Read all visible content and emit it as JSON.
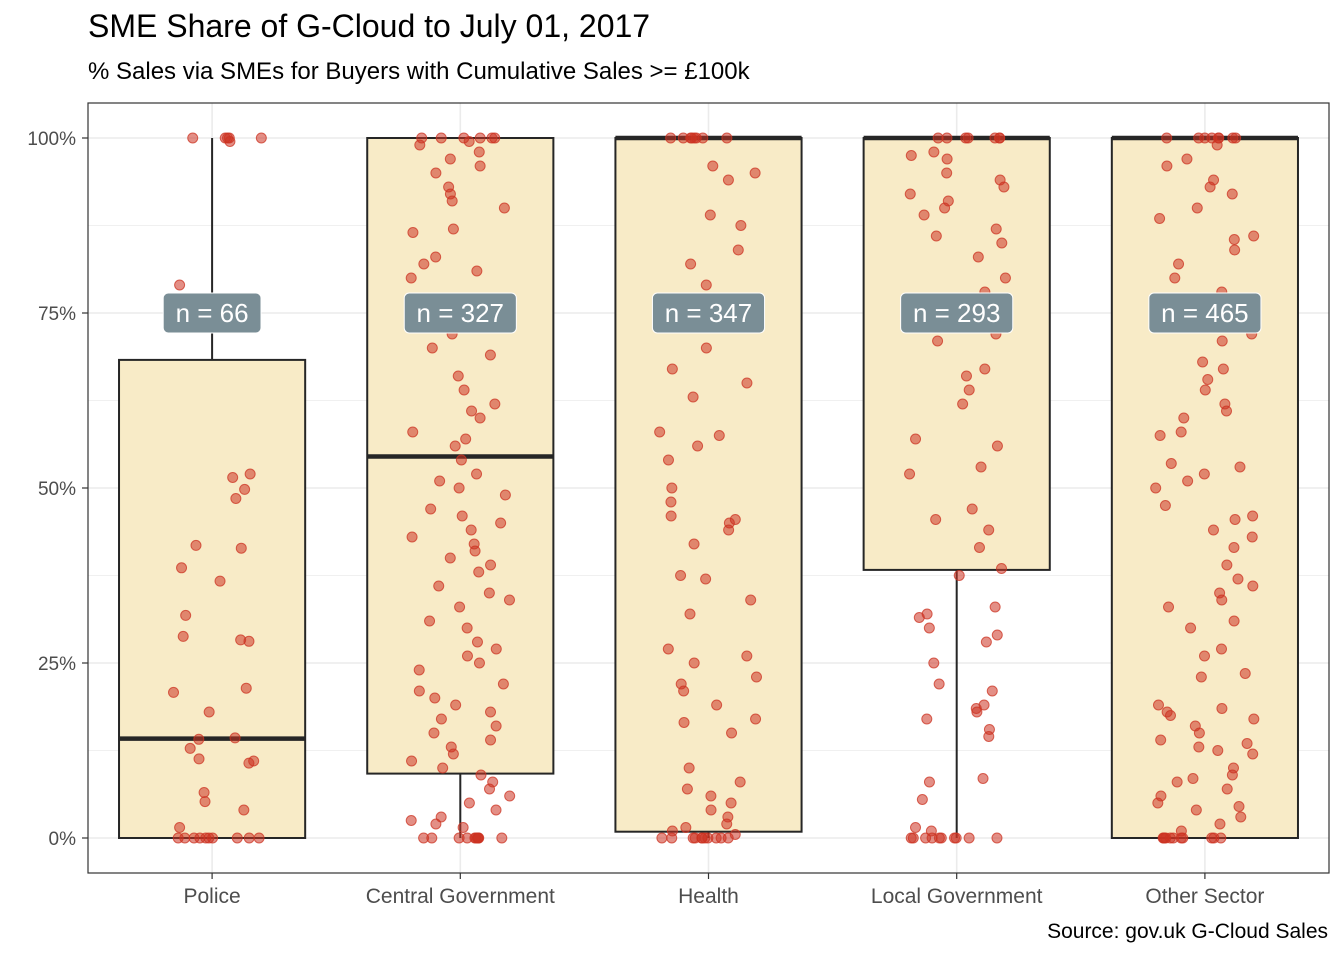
{
  "chart_data": {
    "type": "box",
    "title": "SME Share of G-Cloud to July 01, 2017",
    "subtitle": "% Sales via SMEs for Buyers with Cumulative Sales >= £100k",
    "caption": "Source: gov.uk G-Cloud Sales",
    "xlabel": "",
    "ylabel": "",
    "ylim": [
      -0.05,
      1.05
    ],
    "yticks": [
      0,
      0.25,
      0.5,
      0.75,
      1.0
    ],
    "ytick_labels": [
      "0%",
      "25%",
      "50%",
      "75%",
      "100%"
    ],
    "grid": true,
    "legend": "none",
    "count_label_y": 0.75,
    "colors": {
      "box_fill": "#f8ebc7",
      "box_stroke": "#262626",
      "point": "#cc3322",
      "label_bg": "#7a8e96",
      "label_text": "#ffffff",
      "grid": "#ebebeb",
      "panel_border": "#333333"
    },
    "categories": [
      "Police",
      "Central Government",
      "Health",
      "Local Government",
      "Other Sector"
    ],
    "boxes": [
      {
        "category": "Police",
        "n_label": "n = 66",
        "n": 66,
        "min": 0,
        "q1": 0,
        "median": 0.142,
        "q3": 0.683,
        "max": 1.0
      },
      {
        "category": "Central Government",
        "n_label": "n = 327",
        "n": 327,
        "min": 0,
        "q1": 0.092,
        "median": 0.545,
        "q3": 1.0,
        "max": 1.0
      },
      {
        "category": "Health",
        "n_label": "n = 347",
        "n": 347,
        "min": 0,
        "q1": 0.009,
        "median": 1.0,
        "q3": 1.0,
        "max": 1.0
      },
      {
        "category": "Local Government",
        "n_label": "n = 293",
        "n": 293,
        "min": 0,
        "q1": 0.383,
        "median": 1.0,
        "q3": 1.0,
        "max": 1.0
      },
      {
        "category": "Other Sector",
        "n_label": "n = 465",
        "n": 465,
        "min": 0,
        "q1": 0,
        "median": 1.0,
        "q3": 1.0,
        "max": 1.0
      }
    ],
    "points": {
      "Police": [
        1.0,
        1.0,
        1.0,
        1.0,
        0.995,
        1.0,
        0.79,
        0.52,
        0.515,
        0.498,
        0.485,
        0.418,
        0.414,
        0.386,
        0.367,
        0.318,
        0.288,
        0.283,
        0.281,
        0.214,
        0.208,
        0.18,
        0.143,
        0.141,
        0.128,
        0.113,
        0.11,
        0.107,
        0.065,
        0.052,
        0.04,
        0.015,
        0,
        0,
        0,
        0,
        0,
        0,
        0,
        0,
        0,
        0
      ],
      "Central Government": [
        1.0,
        1.0,
        1.0,
        1.0,
        1.0,
        1.0,
        0.995,
        0.99,
        0.98,
        0.97,
        0.96,
        0.95,
        0.93,
        0.92,
        0.91,
        0.9,
        0.87,
        0.865,
        0.83,
        0.82,
        0.81,
        0.8,
        0.77,
        0.75,
        0.72,
        0.7,
        0.69,
        0.66,
        0.64,
        0.62,
        0.61,
        0.6,
        0.58,
        0.57,
        0.56,
        0.54,
        0.52,
        0.51,
        0.5,
        0.49,
        0.47,
        0.46,
        0.45,
        0.44,
        0.43,
        0.42,
        0.41,
        0.4,
        0.39,
        0.38,
        0.36,
        0.35,
        0.34,
        0.33,
        0.31,
        0.3,
        0.28,
        0.27,
        0.26,
        0.25,
        0.24,
        0.22,
        0.21,
        0.2,
        0.19,
        0.18,
        0.17,
        0.16,
        0.15,
        0.14,
        0.13,
        0.12,
        0.11,
        0.1,
        0.09,
        0.08,
        0.07,
        0.06,
        0.05,
        0.04,
        0.03,
        0.025,
        0.02,
        0.015,
        0,
        0,
        0,
        0,
        0,
        0,
        0,
        0,
        0,
        0,
        0
      ],
      "Health": [
        1.0,
        1.0,
        1.0,
        1.0,
        1.0,
        1.0,
        1.0,
        1.0,
        0.96,
        0.95,
        0.94,
        0.89,
        0.875,
        0.84,
        0.82,
        0.79,
        0.7,
        0.67,
        0.65,
        0.63,
        0.58,
        0.575,
        0.56,
        0.54,
        0.5,
        0.48,
        0.46,
        0.455,
        0.45,
        0.44,
        0.42,
        0.375,
        0.37,
        0.34,
        0.32,
        0.27,
        0.26,
        0.25,
        0.23,
        0.22,
        0.21,
        0.19,
        0.17,
        0.165,
        0.15,
        0.1,
        0.08,
        0.07,
        0.06,
        0.05,
        0.04,
        0.03,
        0.02,
        0.015,
        0.01,
        0.005,
        0,
        0,
        0,
        0,
        0,
        0,
        0,
        0,
        0,
        0,
        0
      ],
      "Local Government": [
        1.0,
        1.0,
        1.0,
        1.0,
        1.0,
        1.0,
        1.0,
        0.98,
        0.975,
        0.97,
        0.95,
        0.94,
        0.93,
        0.92,
        0.91,
        0.9,
        0.89,
        0.87,
        0.86,
        0.85,
        0.83,
        0.8,
        0.78,
        0.76,
        0.73,
        0.72,
        0.71,
        0.67,
        0.66,
        0.64,
        0.62,
        0.57,
        0.56,
        0.53,
        0.52,
        0.47,
        0.455,
        0.44,
        0.415,
        0.385,
        0.375,
        0.33,
        0.32,
        0.315,
        0.3,
        0.29,
        0.28,
        0.25,
        0.22,
        0.21,
        0.19,
        0.185,
        0.18,
        0.17,
        0.155,
        0.145,
        0.085,
        0.08,
        0.055,
        0.015,
        0.01,
        0,
        0,
        0,
        0,
        0,
        0,
        0,
        0,
        0,
        0
      ],
      "Other Sector": [
        1.0,
        1.0,
        1.0,
        1.0,
        1.0,
        1.0,
        1.0,
        1.0,
        0.99,
        0.97,
        0.96,
        0.94,
        0.93,
        0.92,
        0.9,
        0.885,
        0.86,
        0.855,
        0.84,
        0.82,
        0.8,
        0.78,
        0.77,
        0.75,
        0.73,
        0.72,
        0.71,
        0.68,
        0.67,
        0.655,
        0.64,
        0.62,
        0.61,
        0.6,
        0.58,
        0.575,
        0.535,
        0.53,
        0.52,
        0.51,
        0.5,
        0.475,
        0.46,
        0.455,
        0.44,
        0.43,
        0.415,
        0.39,
        0.37,
        0.36,
        0.35,
        0.34,
        0.33,
        0.31,
        0.3,
        0.27,
        0.26,
        0.235,
        0.23,
        0.19,
        0.185,
        0.18,
        0.175,
        0.17,
        0.16,
        0.15,
        0.14,
        0.135,
        0.13,
        0.125,
        0.12,
        0.1,
        0.09,
        0.085,
        0.08,
        0.07,
        0.06,
        0.05,
        0.045,
        0.04,
        0.03,
        0.02,
        0.01,
        0,
        0,
        0,
        0,
        0,
        0,
        0,
        0,
        0,
        0,
        0
      ]
    }
  }
}
